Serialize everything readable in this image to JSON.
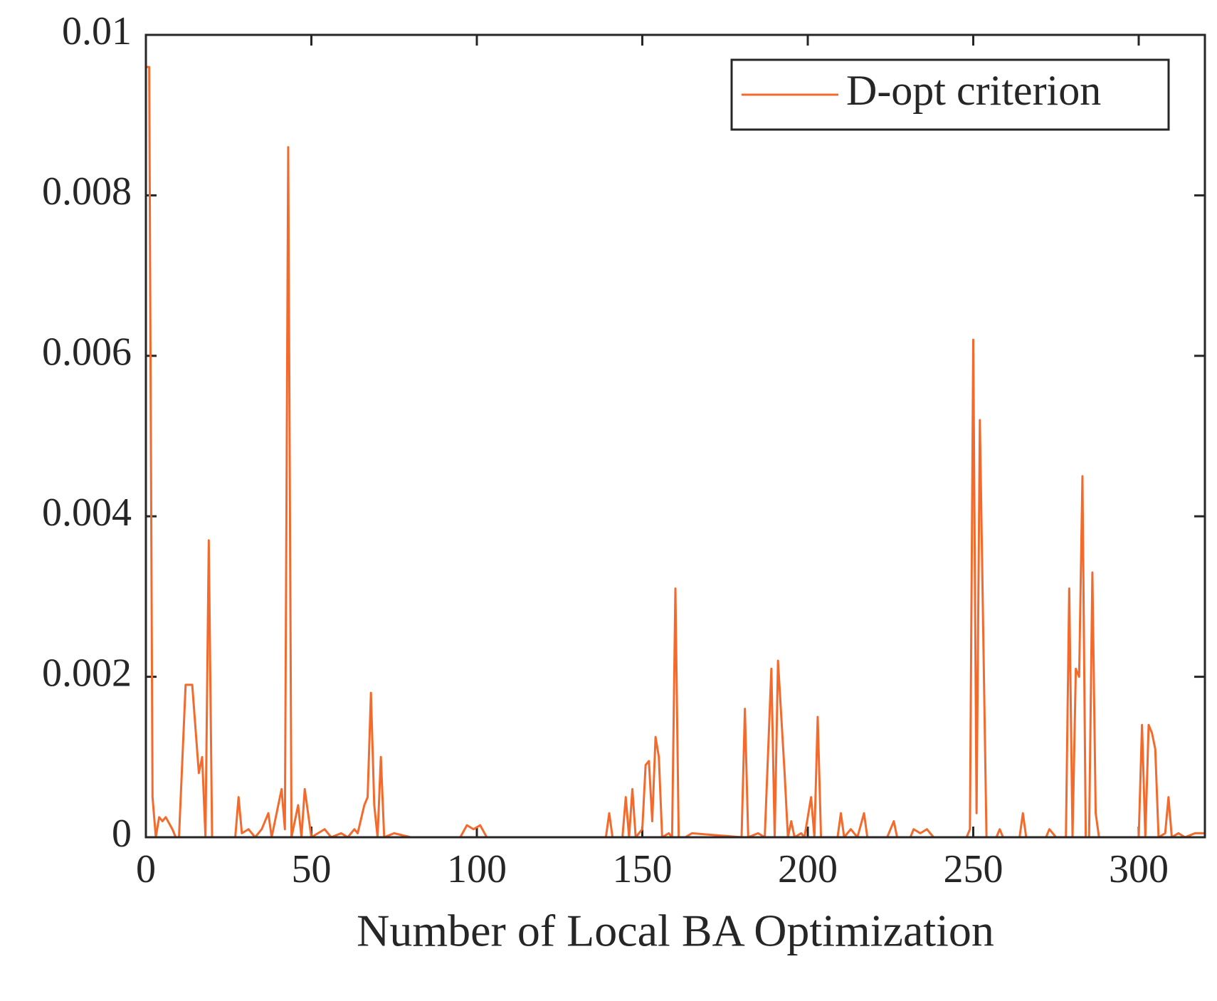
{
  "chart_data": {
    "type": "line",
    "xlabel": "Number of Local BA Optimization",
    "x": [
      0,
      1,
      2,
      3,
      4,
      5,
      6,
      8,
      9,
      10,
      12,
      14,
      16,
      17,
      18,
      19,
      20,
      27,
      28,
      29,
      31,
      33,
      35,
      37,
      38,
      41,
      42,
      43,
      44,
      46,
      47,
      48,
      50,
      54,
      56,
      59,
      61,
      63,
      64,
      66,
      67,
      68,
      69,
      70,
      71,
      72,
      75,
      80,
      95,
      97,
      99,
      101,
      103,
      139,
      140,
      141,
      144,
      145,
      146,
      147,
      148,
      150,
      151,
      152,
      153,
      154,
      155,
      156,
      158,
      159,
      160,
      161,
      163,
      165,
      180,
      181,
      182,
      185,
      187,
      189,
      190,
      191,
      192,
      193,
      194,
      195,
      196,
      198,
      199,
      201,
      202,
      203,
      204,
      209,
      210,
      211,
      213,
      215,
      217,
      218,
      224,
      226,
      227,
      231,
      232,
      234,
      236,
      238,
      248,
      249,
      250,
      251,
      252,
      254,
      257,
      258,
      259,
      264,
      265,
      266,
      272,
      273,
      275,
      278,
      279,
      280,
      281,
      282,
      283,
      284,
      285,
      286,
      287,
      288,
      300,
      301,
      302,
      303,
      304,
      305,
      306,
      308,
      309,
      310,
      312,
      314,
      317,
      320
    ],
    "series": [
      {
        "name": "D-opt criterion",
        "color": "#f46a2c",
        "values": [
          0.0096,
          0.0096,
          0.0005,
          0,
          0.00025,
          0.0002,
          0.00025,
          0.0001,
          0,
          0,
          0.0019,
          0.0019,
          0.0008,
          0.001,
          0,
          0.0037,
          0,
          0,
          0.0005,
          5e-05,
          0.0001,
          0,
          0.0001,
          0.0003,
          0,
          0.0006,
          0.0001,
          0.0086,
          0,
          0.0004,
          0,
          0.0006,
          0,
          0.0001,
          0,
          5e-05,
          0,
          0.0001,
          5e-05,
          0.0004,
          0.0005,
          0.0018,
          0.0004,
          0,
          0.001,
          0,
          5e-05,
          0,
          0,
          0.00015,
          0.0001,
          0.00015,
          0,
          0,
          0.0003,
          0,
          0,
          0.0005,
          0,
          0.0006,
          0,
          0.0001,
          0.0009,
          0.00095,
          0.0002,
          0.00125,
          0.001,
          0,
          5e-05,
          0,
          0.0031,
          0,
          0,
          5e-05,
          0,
          0.0016,
          0,
          5e-05,
          0,
          0.0021,
          0,
          0.0022,
          0.0015,
          0.0008,
          0,
          0.0002,
          0,
          5e-05,
          0,
          0.0005,
          0,
          0.0015,
          0,
          0,
          0.0003,
          0,
          0.0001,
          0,
          0.0003,
          0,
          0,
          0.0002,
          0,
          0,
          0.0001,
          5e-05,
          0.0001,
          0,
          0,
          0.0001,
          0.0062,
          0.0003,
          0.0052,
          0,
          0,
          0.0001,
          0,
          0,
          0.0003,
          0,
          0,
          0.0001,
          0,
          0,
          0.0031,
          0,
          0.0021,
          0.002,
          0.0045,
          0,
          0,
          0.0033,
          0.0003,
          0,
          0,
          0.0014,
          0,
          0.0014,
          0.0013,
          0.0011,
          0,
          5e-05,
          0.0005,
          0,
          5e-05,
          0,
          5e-05,
          5e-05
        ]
      }
    ],
    "xlim": [
      0,
      320
    ],
    "xticks": [
      0,
      50,
      100,
      150,
      200,
      250,
      300
    ],
    "ylim": [
      0,
      0.01
    ],
    "yticks": [
      0,
      0.002,
      0.004,
      0.006,
      0.008,
      0.01
    ],
    "legend": "northeast"
  }
}
